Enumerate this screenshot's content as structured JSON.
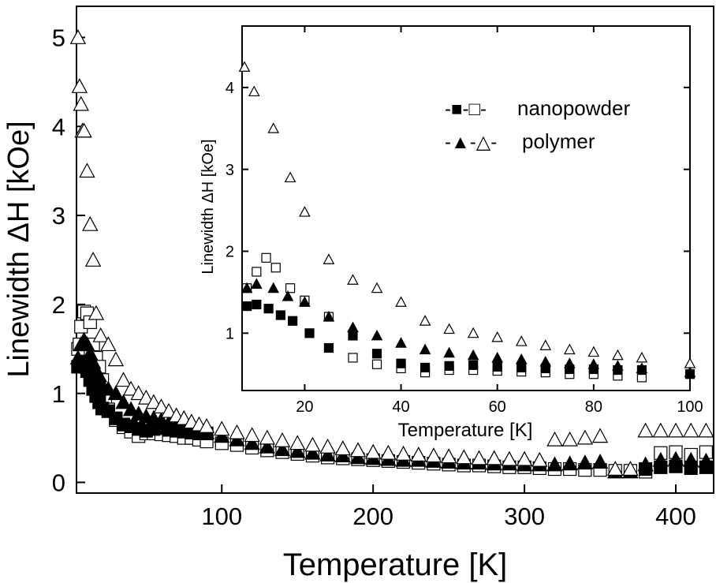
{
  "chart_data": [
    {
      "id": "main",
      "type": "scatter",
      "xlabel": "Temperature [K]",
      "ylabel": "Linewidth ΔH [kOe]",
      "xlim": [
        4,
        425
      ],
      "ylim": [
        -0.12,
        5.35
      ],
      "xticks": [
        100,
        200,
        300,
        400
      ],
      "yticks": [
        0,
        1,
        2,
        3,
        4,
        5
      ],
      "series": [
        {
          "name": "nanopowder ΔH (open)",
          "marker": "square-open",
          "x": [
            5,
            6,
            7,
            9,
            11,
            13,
            15,
            17,
            19,
            21,
            23,
            25,
            30,
            35,
            40,
            45,
            50,
            55,
            60,
            65,
            70,
            75,
            80,
            85,
            90,
            100,
            110,
            120,
            130,
            140,
            150,
            160,
            170,
            180,
            190,
            200,
            210,
            220,
            230,
            240,
            250,
            260,
            270,
            280,
            290,
            300,
            310,
            320,
            330,
            340,
            350,
            360,
            370,
            380,
            390,
            400,
            410,
            420
          ],
          "y": [
            1.5,
            1.55,
            1.75,
            1.92,
            1.9,
            1.8,
            1.55,
            1.4,
            1.3,
            1.15,
            0.95,
            0.82,
            0.7,
            0.62,
            0.57,
            0.52,
            0.55,
            0.55,
            0.54,
            0.53,
            0.52,
            0.5,
            0.5,
            0.48,
            0.46,
            0.44,
            0.42,
            0.39,
            0.36,
            0.34,
            0.32,
            0.3,
            0.28,
            0.27,
            0.26,
            0.25,
            0.24,
            0.23,
            0.22,
            0.21,
            0.2,
            0.19,
            0.19,
            0.18,
            0.17,
            0.17,
            0.16,
            0.15,
            0.15,
            0.14,
            0.14,
            0.13,
            0.13,
            0.12,
            0.33,
            0.34,
            0.31,
            0.34
          ]
        },
        {
          "name": "nanopowder ΔH (solid)",
          "marker": "square-filled",
          "x": [
            5,
            7,
            9,
            11,
            13,
            15,
            17,
            19,
            21,
            25,
            30,
            35,
            40,
            45,
            50,
            55,
            60,
            65,
            70,
            75,
            80,
            85,
            90,
            380,
            390,
            400,
            410,
            420
          ],
          "y": [
            1.3,
            1.3,
            1.35,
            1.25,
            1.15,
            1.05,
            0.97,
            0.9,
            0.83,
            0.8,
            0.72,
            0.65,
            0.63,
            0.6,
            0.58,
            0.6,
            0.61,
            0.59,
            0.58,
            0.57,
            0.56,
            0.55,
            0.55,
            0.15,
            0.17,
            0.18,
            0.16,
            0.17
          ]
        },
        {
          "name": "polymer ΔH (solid)",
          "marker": "triangle-filled",
          "x": [
            5,
            7,
            9,
            11,
            13,
            15,
            17,
            19,
            21,
            25,
            30,
            35,
            40,
            45,
            50,
            55,
            60,
            65,
            70,
            75,
            80,
            85,
            90,
            100,
            110,
            120,
            130,
            140,
            150,
            160,
            170,
            180,
            190,
            200,
            210,
            220,
            230,
            240,
            250,
            260,
            270,
            280,
            290,
            300,
            310,
            320,
            330,
            340,
            350,
            360,
            370,
            380,
            390,
            400,
            410,
            420
          ],
          "y": [
            1.4,
            1.55,
            1.6,
            1.55,
            1.45,
            1.35,
            1.25,
            1.2,
            1.1,
            1.05,
            1.0,
            0.9,
            0.82,
            0.77,
            0.74,
            0.72,
            0.7,
            0.67,
            0.64,
            0.62,
            0.6,
            0.58,
            0.56,
            0.52,
            0.48,
            0.44,
            0.4,
            0.37,
            0.35,
            0.33,
            0.31,
            0.3,
            0.28,
            0.27,
            0.26,
            0.25,
            0.25,
            0.24,
            0.23,
            0.22,
            0.22,
            0.21,
            0.21,
            0.2,
            0.2,
            0.2,
            0.21,
            0.22,
            0.23,
            0.12,
            0.12,
            0.2,
            0.25,
            0.26,
            0.25,
            0.24
          ]
        },
        {
          "name": "polymer ΔH (open)",
          "marker": "triangle-open",
          "x": [
            5,
            6,
            7,
            8,
            9,
            11,
            13,
            15,
            17,
            20,
            25,
            30,
            35,
            40,
            45,
            50,
            55,
            60,
            65,
            70,
            75,
            80,
            85,
            90,
            100,
            110,
            120,
            130,
            140,
            150,
            160,
            170,
            180,
            190,
            200,
            210,
            220,
            230,
            240,
            250,
            260,
            270,
            280,
            290,
            300,
            310,
            320,
            330,
            340,
            350,
            360,
            370,
            380,
            390,
            400,
            410,
            420
          ],
          "y": [
            5.0,
            4.45,
            4.25,
            3.95,
            3.95,
            3.5,
            2.9,
            2.5,
            1.9,
            1.65,
            1.55,
            1.38,
            1.15,
            1.05,
            1.0,
            0.95,
            0.9,
            0.85,
            0.8,
            0.75,
            0.72,
            0.68,
            0.65,
            0.63,
            0.6,
            0.56,
            0.53,
            0.5,
            0.47,
            0.44,
            0.42,
            0.4,
            0.38,
            0.36,
            0.34,
            0.33,
            0.32,
            0.31,
            0.3,
            0.29,
            0.28,
            0.27,
            0.27,
            0.26,
            0.26,
            0.25,
            0.48,
            0.48,
            0.5,
            0.52,
            0.15,
            0.15,
            0.58,
            0.58,
            0.58,
            0.58,
            0.58
          ]
        }
      ]
    },
    {
      "id": "inset",
      "type": "scatter",
      "xlabel": "Temperature [K]",
      "ylabel": "Linewidth ΔH [kOe]",
      "xlim": [
        7,
        100
      ],
      "ylim": [
        0.3,
        4.75
      ],
      "xticks": [
        20,
        40,
        60,
        80,
        100
      ],
      "yticks": [
        1,
        2,
        3,
        4
      ],
      "legend": {
        "position": "top-right",
        "entries": [
          {
            "prefix": "-■-□-",
            "label": "nanopowder"
          },
          {
            "prefix": "-▲-△-",
            "label": "polymer"
          }
        ]
      },
      "series": [
        {
          "name": "polymer ΔH (open)",
          "marker": "triangle-open",
          "x": [
            7.5,
            9.5,
            13.5,
            17,
            20,
            25,
            30,
            35,
            40,
            45,
            50,
            55,
            60,
            65,
            70,
            75,
            80,
            85,
            90,
            100
          ],
          "y": [
            4.25,
            3.95,
            3.5,
            2.9,
            2.48,
            1.9,
            1.65,
            1.55,
            1.38,
            1.15,
            1.05,
            1.0,
            0.95,
            0.9,
            0.85,
            0.8,
            0.77,
            0.73,
            0.7,
            0.63
          ]
        },
        {
          "name": "nanopowder ΔH (open)",
          "marker": "square-open",
          "x": [
            8,
            10,
            12,
            14,
            17,
            20,
            25,
            30,
            35,
            40,
            45,
            50,
            55,
            60,
            65,
            70,
            75,
            80,
            85,
            90
          ],
          "y": [
            1.55,
            1.75,
            1.92,
            1.8,
            1.55,
            1.4,
            1.2,
            0.7,
            0.62,
            0.57,
            0.52,
            0.55,
            0.55,
            0.54,
            0.53,
            0.52,
            0.5,
            0.5,
            0.48,
            0.46
          ]
        },
        {
          "name": "nanopowder ΔH (solid)",
          "marker": "square-filled",
          "x": [
            8,
            10,
            12.5,
            15,
            17.5,
            21,
            25,
            30,
            35,
            40,
            45,
            50,
            55,
            60,
            65,
            70,
            75,
            80,
            85,
            90,
            100
          ],
          "y": [
            1.33,
            1.35,
            1.3,
            1.22,
            1.15,
            1.0,
            0.82,
            0.97,
            0.75,
            0.63,
            0.58,
            0.6,
            0.61,
            0.59,
            0.58,
            0.57,
            0.56,
            0.56,
            0.55,
            0.55,
            0.5
          ]
        },
        {
          "name": "polymer ΔH (solid)",
          "marker": "triangle-filled",
          "x": [
            8,
            10,
            13.5,
            16.5,
            20,
            25,
            30,
            35,
            40,
            45,
            50,
            55,
            60,
            65,
            70,
            75,
            80,
            85,
            90,
            100
          ],
          "y": [
            1.55,
            1.6,
            1.55,
            1.45,
            1.38,
            1.2,
            1.07,
            0.97,
            0.88,
            0.8,
            0.76,
            0.73,
            0.7,
            0.68,
            0.65,
            0.63,
            0.62,
            0.6,
            0.57,
            0.52
          ]
        }
      ]
    }
  ]
}
